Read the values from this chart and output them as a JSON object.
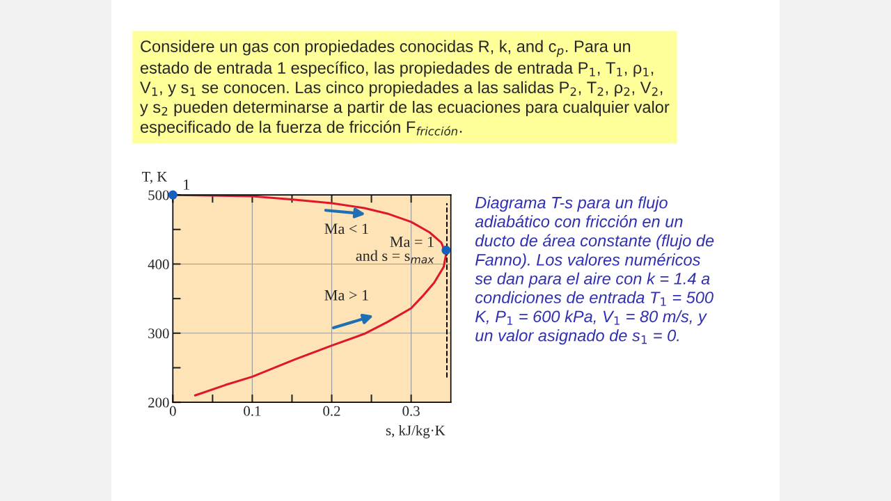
{
  "chart_data": {
    "type": "line",
    "title": "Considere un gas con propiedades conocidas R, k, and c$_{p}$. Para un\nestado de entrada 1 específico, las propiedades de entrada P$_{1}$, T$_{1}$, ρ$_{1}$,\nV$_{1}$, y s$_{1}$ se conocen. Las cinco propiedades a las salidas P$_{2}$, T$_{2}$, ρ$_{2}$, V$_{2}$,\ny s$_{2}$ pueden determinarse a partir de las ecuaciones para cualquier valor\nespecificado de la fuerza de fricción F$_{fricción}$.",
    "xlabel": "s, kJ/kg·K",
    "ylabel": "T, K",
    "series": [
      {
        "color": "#e0162b",
        "x": [
          0,
          0.1,
          0.1535,
          0.2,
          0.241,
          0.27,
          0.3,
          0.323,
          0.338,
          0.344,
          0.341,
          0.329,
          0.314,
          0.3,
          0.27,
          0.241,
          0.2,
          0.1535,
          0.1,
          0.066,
          0.028
        ],
        "values": [
          500,
          498,
          493,
          488,
          481,
          473,
          461,
          446,
          431,
          414,
          396,
          373,
          353,
          336,
          316,
          299,
          282,
          262,
          237,
          225,
          210
        ]
      },
      {
        "type": "scatter",
        "marker": "circle",
        "color": "#1560bd",
        "x": [
          0,
          0.344
        ],
        "values": [
          500,
          420
        ]
      }
    ],
    "ref_lines": [
      {
        "axis": "x",
        "value": 0.345,
        "color": "#000000",
        "line_style": "dashed"
      }
    ],
    "xlim": [
      0,
      0.35
    ],
    "ylim": [
      200,
      500
    ],
    "xticks": [
      0,
      {
        "value": 0.05,
        "label": null
      },
      0.1,
      {
        "value": 0.15,
        "label": null
      },
      0.2,
      {
        "value": 0.25,
        "label": null
      },
      0.3
    ],
    "yticks": [
      200,
      {
        "value": 250,
        "label": null
      },
      300,
      {
        "value": 350,
        "label": null
      },
      400,
      {
        "value": 450,
        "label": null
      },
      500
    ],
    "grid": true,
    "annotations": [
      {
        "text": "1",
        "x": 0,
        "y": 500
      },
      "Ma < 1",
      {
        "text": "Ma = 1\nand s = s$_{max}$",
        "x": 0.344,
        "y": 420
      },
      "Ma > 1",
      "Diagrama T-s para un flujo\nadiabático con fricción en un\nducto de área constante (flujo de\nFanno). Los valores numéricos\nse dan para el aire con k = 1.4 a\ncondiciones de entrada T$_{1}$ = 500\nK, P$_{1}$ = 600 kPa, V$_{1}$ = 80 m/s, y\nun valor asignado de s$_{1}$ = 0."
    ]
  }
}
